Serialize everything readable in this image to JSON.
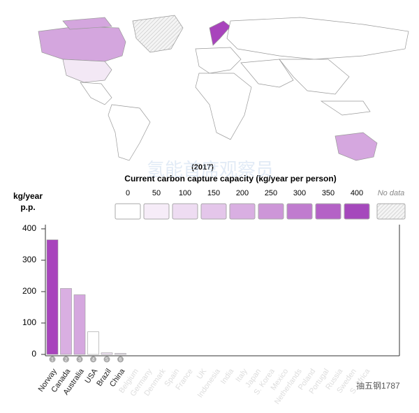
{
  "map_legend": {
    "year": "(2017)",
    "title": "Current carbon capture capacity (kg/year per person)",
    "ticks": [
      0,
      50,
      100,
      150,
      200,
      250,
      300,
      350,
      400
    ],
    "colors": [
      "#ffffff",
      "#f6ecf8",
      "#eedcf2",
      "#e4c6ea",
      "#d9afe2",
      "#cd96d8",
      "#c07ccf",
      "#b462c6",
      "#a548bc"
    ],
    "no_data": "No data"
  },
  "chart_data": {
    "type": "bar",
    "y_label": [
      "kg/year",
      "p.p."
    ],
    "categories": [
      "Norway",
      "Canada",
      "Australia",
      "USA",
      "Brazil",
      "China",
      "Belgium",
      "Germany",
      "Denmark",
      "Spain",
      "France",
      "UK",
      "Indonesia",
      "India",
      "Italy",
      "Japan",
      "S. Korea",
      "Mexico",
      "Netherlands",
      "Poland",
      "Portugal",
      "Russia",
      "Sweden",
      "S. Africa"
    ],
    "ranks": [
      "1",
      "2",
      "3",
      "4",
      "5",
      "6"
    ],
    "values": [
      365,
      210,
      190,
      72,
      5,
      3,
      null,
      null,
      null,
      null,
      null,
      null,
      null,
      null,
      null,
      null,
      null,
      null,
      null,
      null,
      null,
      null,
      null,
      null
    ],
    "colors": [
      "#a844bc",
      "#d9afe2",
      "#d5a7df",
      "#ffffff",
      "#f1e2f4",
      "#f1e2f4"
    ],
    "ylim": [
      0,
      400
    ],
    "yticks": [
      0,
      100,
      200,
      300,
      400
    ]
  },
  "watermarks": [
    "氢能首席观察员",
    "抽五钢1787"
  ]
}
